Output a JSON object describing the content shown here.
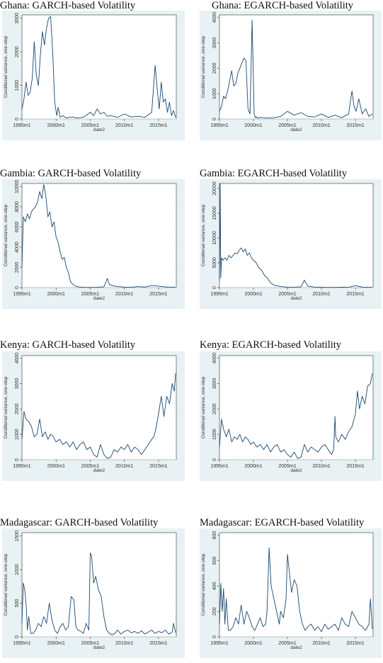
{
  "chart_data": [
    {
      "type": "line",
      "title": "Ghana: GARCH-based Volatility",
      "ylabel": "Conditional variance, one-step",
      "xlabel": "date2",
      "xlim": [
        1995,
        2017.6
      ],
      "ylim": [
        0,
        3100
      ],
      "yticks": [
        0,
        1000,
        2000,
        3000
      ],
      "ytick_labels": [
        "0",
        "1000",
        "2000",
        "3000"
      ],
      "xticks": [
        1995,
        2000,
        2005,
        2010,
        2015
      ],
      "xtick_labels": [
        "1995m1",
        "2000m1",
        "2005m1",
        "2010m1",
        "2015m1"
      ],
      "x": [
        1995.0,
        1995.3,
        1995.6,
        1995.9,
        1996.2,
        1996.5,
        1996.8,
        1997.1,
        1997.4,
        1997.7,
        1998.0,
        1998.3,
        1998.6,
        1998.9,
        1999.2,
        1999.5,
        1999.8,
        2000.1,
        2000.3,
        2000.6,
        2001,
        2001.5,
        2002,
        2002.5,
        2003,
        2004,
        2005,
        2005.5,
        2006,
        2006.5,
        2007,
        2007.5,
        2008,
        2009,
        2010,
        2011,
        2012,
        2013,
        2014,
        2014.5,
        2014.8,
        2015.1,
        2015.4,
        2015.7,
        2016,
        2016.3,
        2016.6,
        2016.9,
        2017.2,
        2017.5
      ],
      "values": [
        300,
        600,
        1100,
        700,
        800,
        1200,
        2300,
        1300,
        1000,
        1900,
        2600,
        2200,
        2700,
        3000,
        3050,
        2000,
        500,
        100,
        350,
        50,
        100,
        30,
        50,
        60,
        30,
        50,
        200,
        100,
        300,
        150,
        200,
        80,
        100,
        50,
        150,
        60,
        80,
        50,
        200,
        1600,
        900,
        300,
        1100,
        500,
        600,
        200,
        500,
        100,
        250,
        50
      ]
    },
    {
      "type": "line",
      "title": "Ghana: EGARCH-based Volatility",
      "ylabel": "Conditional variance, one-step",
      "xlabel": "date2",
      "xlim": [
        1995,
        2017.6
      ],
      "ylim": [
        0,
        4100
      ],
      "yticks": [
        0,
        1000,
        2000,
        3000,
        4000
      ],
      "ytick_labels": [
        "0",
        "1000",
        "2000",
        "3000",
        "4000"
      ],
      "xticks": [
        1995,
        2000,
        2005,
        2010,
        2015
      ],
      "xtick_labels": [
        "1995m1",
        "2000m1",
        "2005m1",
        "2010m1",
        "2015m1"
      ],
      "x": [
        1995.0,
        1995.3,
        1995.6,
        1995.9,
        1996.2,
        1996.5,
        1996.8,
        1997.1,
        1997.4,
        1997.7,
        1998.0,
        1998.3,
        1998.6,
        1998.9,
        1999.2,
        1999.5,
        1999.8,
        2000.1,
        2000.2,
        2000.3,
        2000.4,
        2000.6,
        2001,
        2002,
        2003,
        2004,
        2005,
        2006,
        2007,
        2008,
        2009,
        2010,
        2011,
        2012,
        2013,
        2014,
        2014.5,
        2014.8,
        2015.1,
        2015.5,
        2016,
        2016.5,
        2017,
        2017.5
      ],
      "values": [
        300,
        500,
        900,
        800,
        1100,
        1500,
        1900,
        1300,
        1400,
        1800,
        2000,
        2200,
        2400,
        2300,
        400,
        200,
        3900,
        200,
        100,
        50,
        100,
        30,
        60,
        40,
        50,
        100,
        300,
        150,
        250,
        100,
        80,
        200,
        60,
        150,
        50,
        200,
        1100,
        500,
        300,
        800,
        200,
        400,
        100,
        200
      ]
    },
    {
      "type": "line",
      "title": "Gambia: GARCH-based Volatility",
      "ylabel": "Conditional variance, one-step",
      "xlabel": "date2",
      "xlim": [
        1995,
        2017.6
      ],
      "ylim": [
        0,
        10300
      ],
      "yticks": [
        0,
        2000,
        4000,
        6000,
        8000,
        10000
      ],
      "ytick_labels": [
        "0",
        "2000",
        "4000",
        "6000",
        "8000",
        "10000"
      ],
      "xticks": [
        1995,
        2000,
        2005,
        2010,
        2015
      ],
      "xtick_labels": [
        "1995m1",
        "2000m1",
        "2005m1",
        "2010m1",
        "2015m1"
      ],
      "x": [
        1995.0,
        1995.2,
        1995.5,
        1995.8,
        1996.1,
        1996.4,
        1996.7,
        1997,
        1997.3,
        1997.6,
        1997.9,
        1998.2,
        1998.5,
        1998.8,
        1999.1,
        1999.4,
        1999.7,
        2000,
        2000.3,
        2000.6,
        2000.9,
        2001.2,
        2001.5,
        2001.8,
        2002.1,
        2002.5,
        2003,
        2003.5,
        2004,
        2005,
        2006,
        2007,
        2007.5,
        2007.8,
        2008.2,
        2009,
        2010,
        2011,
        2012,
        2013,
        2014,
        2015,
        2016,
        2017.5
      ],
      "values": [
        2000,
        7000,
        6500,
        7300,
        6800,
        7500,
        7800,
        8000,
        8500,
        9500,
        8800,
        10200,
        9000,
        7000,
        7500,
        6000,
        6500,
        5000,
        4500,
        3500,
        2800,
        3000,
        2000,
        1500,
        600,
        300,
        100,
        50,
        30,
        20,
        30,
        80,
        900,
        300,
        200,
        100,
        50,
        30,
        100,
        50,
        200,
        150,
        60,
        30
      ]
    },
    {
      "type": "line",
      "title": "Gambia: EGARCH-based Volatility",
      "ylabel": "Conditional variance, one-step",
      "xlabel": "date2",
      "xlim": [
        1995,
        2017.6
      ],
      "ylim": [
        0,
        21000
      ],
      "yticks": [
        0,
        5000,
        10000,
        15000,
        20000
      ],
      "ytick_labels": [
        "0",
        "5000",
        "10000",
        "15000",
        "20000"
      ],
      "xticks": [
        1995,
        2000,
        2005,
        2010,
        2015
      ],
      "xtick_labels": [
        "1995m1",
        "2000m1",
        "2005m1",
        "2010m1",
        "2015m1"
      ],
      "x": [
        1995.0,
        1995.1,
        1995.2,
        1995.3,
        1995.5,
        1995.8,
        1996.1,
        1996.4,
        1996.7,
        1997,
        1997.3,
        1997.6,
        1997.9,
        1998.2,
        1998.5,
        1998.8,
        1999.1,
        1999.4,
        1999.7,
        2000,
        2000.4,
        2000.8,
        2001.2,
        2001.6,
        2002,
        2002.5,
        2003,
        2004,
        2005,
        2006,
        2007,
        2007.5,
        2008,
        2009,
        2010,
        2011,
        2012,
        2013,
        2014,
        2015,
        2016,
        2017.5
      ],
      "values": [
        1500,
        21000,
        2000,
        6000,
        5500,
        6000,
        5500,
        6500,
        6000,
        6500,
        7000,
        6800,
        7500,
        8000,
        7200,
        7800,
        6500,
        7000,
        6000,
        5500,
        5000,
        4000,
        3500,
        2500,
        2000,
        1000,
        500,
        200,
        100,
        80,
        150,
        1500,
        300,
        100,
        60,
        50,
        40,
        80,
        50,
        400,
        100,
        50
      ]
    },
    {
      "type": "line",
      "title": "Kenya: GARCH-based Volatility",
      "ylabel": "Conditional variance, one-step",
      "xlabel": "date2",
      "xlim": [
        1995,
        2017.6
      ],
      "ylim": [
        0,
        4100
      ],
      "yticks": [
        0,
        1000,
        2000,
        3000,
        4000
      ],
      "ytick_labels": [
        "0",
        "1000",
        "2000",
        "3000",
        "4000"
      ],
      "xticks": [
        1995,
        2000,
        2005,
        2010,
        2015
      ],
      "xtick_labels": [
        "1995m1",
        "2000m1",
        "2005m1",
        "2010m1",
        "2015m1"
      ],
      "x": [
        1995.0,
        1995.3,
        1995.6,
        1996,
        1996.4,
        1996.8,
        1997.2,
        1997.6,
        1998,
        1998.4,
        1998.8,
        1999.2,
        1999.6,
        2000,
        2000.5,
        2001,
        2001.5,
        2002,
        2002.5,
        2003,
        2003.5,
        2004,
        2004.5,
        2005,
        2005.5,
        2006,
        2006.5,
        2007,
        2007.5,
        2008,
        2008.5,
        2009,
        2009.5,
        2010,
        2010.5,
        2011,
        2011.5,
        2012,
        2012.5,
        2013,
        2013.5,
        2014,
        2014.3,
        2014.6,
        2015,
        2015.4,
        2015.8,
        2016.2,
        2016.6,
        2017,
        2017.3,
        2017.5
      ],
      "values": [
        800,
        1900,
        1600,
        1500,
        1300,
        900,
        1000,
        1600,
        900,
        1100,
        800,
        1000,
        900,
        700,
        800,
        600,
        700,
        500,
        700,
        400,
        600,
        700,
        400,
        500,
        200,
        100,
        600,
        200,
        50,
        100,
        400,
        300,
        500,
        400,
        600,
        300,
        500,
        400,
        200,
        400,
        600,
        800,
        900,
        1200,
        1800,
        2500,
        1700,
        2500,
        2200,
        3000,
        2700,
        3400
      ]
    },
    {
      "type": "line",
      "title": "Kenya: EGARCH-based Volatility",
      "ylabel": "Conditional variance, one-step",
      "xlabel": "date2",
      "xlim": [
        1995,
        2017.6
      ],
      "ylim": [
        0,
        4100
      ],
      "yticks": [
        0,
        1000,
        2000,
        3000,
        4000
      ],
      "ytick_labels": [
        "0",
        "1000",
        "2000",
        "3000",
        "4000"
      ],
      "xticks": [
        1995,
        2000,
        2005,
        2010,
        2015
      ],
      "xtick_labels": [
        "1995m1",
        "2000m1",
        "2005m1",
        "2010m1",
        "2015m1"
      ],
      "x": [
        1995.0,
        1995.3,
        1995.6,
        1996,
        1996.4,
        1996.8,
        1997.2,
        1997.6,
        1998,
        1998.4,
        1998.8,
        1999.2,
        1999.6,
        2000,
        2000.5,
        2001,
        2001.5,
        2002,
        2002.5,
        2003,
        2003.5,
        2004,
        2004.5,
        2005,
        2005.5,
        2006,
        2006.5,
        2007,
        2007.5,
        2008,
        2008.5,
        2009,
        2009.5,
        2010,
        2010.5,
        2011,
        2011.5,
        2011.8,
        2012,
        2012.1,
        2012.5,
        2013,
        2013.5,
        2014,
        2014.5,
        2015,
        2015.3,
        2015.6,
        2016,
        2016.4,
        2016.8,
        2017.2,
        2017.5
      ],
      "values": [
        500,
        1600,
        1200,
        900,
        1200,
        700,
        900,
        800,
        1000,
        700,
        900,
        800,
        600,
        700,
        500,
        600,
        400,
        600,
        300,
        500,
        600,
        300,
        400,
        200,
        100,
        300,
        50,
        100,
        600,
        300,
        500,
        400,
        300,
        500,
        600,
        400,
        200,
        400,
        1700,
        900,
        700,
        1000,
        800,
        1100,
        1300,
        1800,
        2700,
        2000,
        2500,
        2200,
        2900,
        3000,
        3400
      ]
    },
    {
      "type": "line",
      "title": "Madagascar: GARCH-based Volatility",
      "ylabel": "Conditional variance, one-step",
      "xlabel": "date2",
      "xlim": [
        1995,
        2017.6
      ],
      "ylim": [
        0,
        1550
      ],
      "yticks": [
        0,
        500,
        1000,
        1500
      ],
      "ytick_labels": [
        "0",
        "500",
        "1000",
        "1500"
      ],
      "xticks": [
        1995,
        2000,
        2005,
        2010,
        2015
      ],
      "xtick_labels": [
        "1995m1",
        "2000m1",
        "2005m1",
        "2010m1",
        "2015m1"
      ],
      "x": [
        1995.0,
        1995.2,
        1995.4,
        1995.6,
        1995.8,
        1996,
        1996.3,
        1996.6,
        1997,
        1997.4,
        1997.8,
        1998.2,
        1998.6,
        1999,
        1999.4,
        1999.8,
        2000.2,
        2000.6,
        2001,
        2001.4,
        2001.8,
        2002.2,
        2002.6,
        2002.9,
        2003.2,
        2003.6,
        2004,
        2004.4,
        2004.8,
        2005,
        2005.2,
        2005.5,
        2005.8,
        2006.2,
        2006.6,
        2007,
        2007.4,
        2007.8,
        2008.2,
        2008.6,
        2009,
        2009.5,
        2010,
        2010.5,
        2011,
        2011.5,
        2012,
        2012.5,
        2013,
        2013.5,
        2014,
        2014.5,
        2015,
        2015.5,
        2016,
        2016.5,
        2017,
        2017.2,
        2017.5
      ],
      "values": [
        200,
        800,
        700,
        500,
        100,
        300,
        50,
        50,
        100,
        200,
        150,
        300,
        200,
        500,
        250,
        100,
        50,
        150,
        200,
        100,
        150,
        600,
        550,
        150,
        100,
        80,
        50,
        200,
        100,
        1250,
        1200,
        800,
        900,
        700,
        600,
        300,
        100,
        50,
        30,
        50,
        100,
        40,
        80,
        100,
        60,
        80,
        50,
        90,
        40,
        70,
        100,
        50,
        80,
        60,
        100,
        40,
        70,
        200,
        60
      ]
    },
    {
      "type": "line",
      "title": "Madagascar: EGARCH-based Volatility",
      "ylabel": "Conditional variance, one-step",
      "xlabel": "date2",
      "xlim": [
        1995,
        2017.6
      ],
      "ylim": [
        0,
        820
      ],
      "yticks": [
        0,
        200,
        400,
        600,
        800
      ],
      "ytick_labels": [
        "0",
        "200",
        "400",
        "600",
        "800"
      ],
      "xticks": [
        1995,
        2000,
        2005,
        2010,
        2015
      ],
      "xtick_labels": [
        "1995m1",
        "2000m1",
        "2005m1",
        "2010m1",
        "2015m1"
      ],
      "x": [
        1995.0,
        1995.2,
        1995.4,
        1995.6,
        1995.8,
        1996,
        1996.3,
        1996.6,
        1997,
        1997.4,
        1997.8,
        1998.2,
        1998.6,
        1999,
        1999.4,
        1999.8,
        2000.2,
        2000.6,
        2001,
        2001.4,
        2001.8,
        2002,
        2002.3,
        2002.6,
        2003,
        2003.4,
        2003.8,
        2004,
        2004.4,
        2004.8,
        2005,
        2005.3,
        2005.6,
        2006,
        2006.4,
        2006.8,
        2007.2,
        2007.6,
        2008,
        2008.5,
        2009,
        2009.5,
        2010,
        2010.5,
        2011,
        2011.5,
        2012,
        2012.5,
        2013,
        2013.5,
        2014,
        2014.5,
        2015,
        2015.5,
        2016,
        2016.5,
        2017,
        2017.2,
        2017.5
      ],
      "values": [
        100,
        420,
        200,
        380,
        100,
        300,
        50,
        50,
        80,
        150,
        100,
        250,
        100,
        200,
        150,
        80,
        50,
        100,
        150,
        80,
        100,
        200,
        700,
        400,
        300,
        200,
        100,
        200,
        150,
        300,
        650,
        500,
        350,
        450,
        400,
        200,
        100,
        50,
        80,
        100,
        50,
        80,
        40,
        100,
        60,
        80,
        100,
        50,
        150,
        100,
        80,
        200,
        150,
        100,
        80,
        50,
        100,
        300,
        60
      ]
    }
  ]
}
